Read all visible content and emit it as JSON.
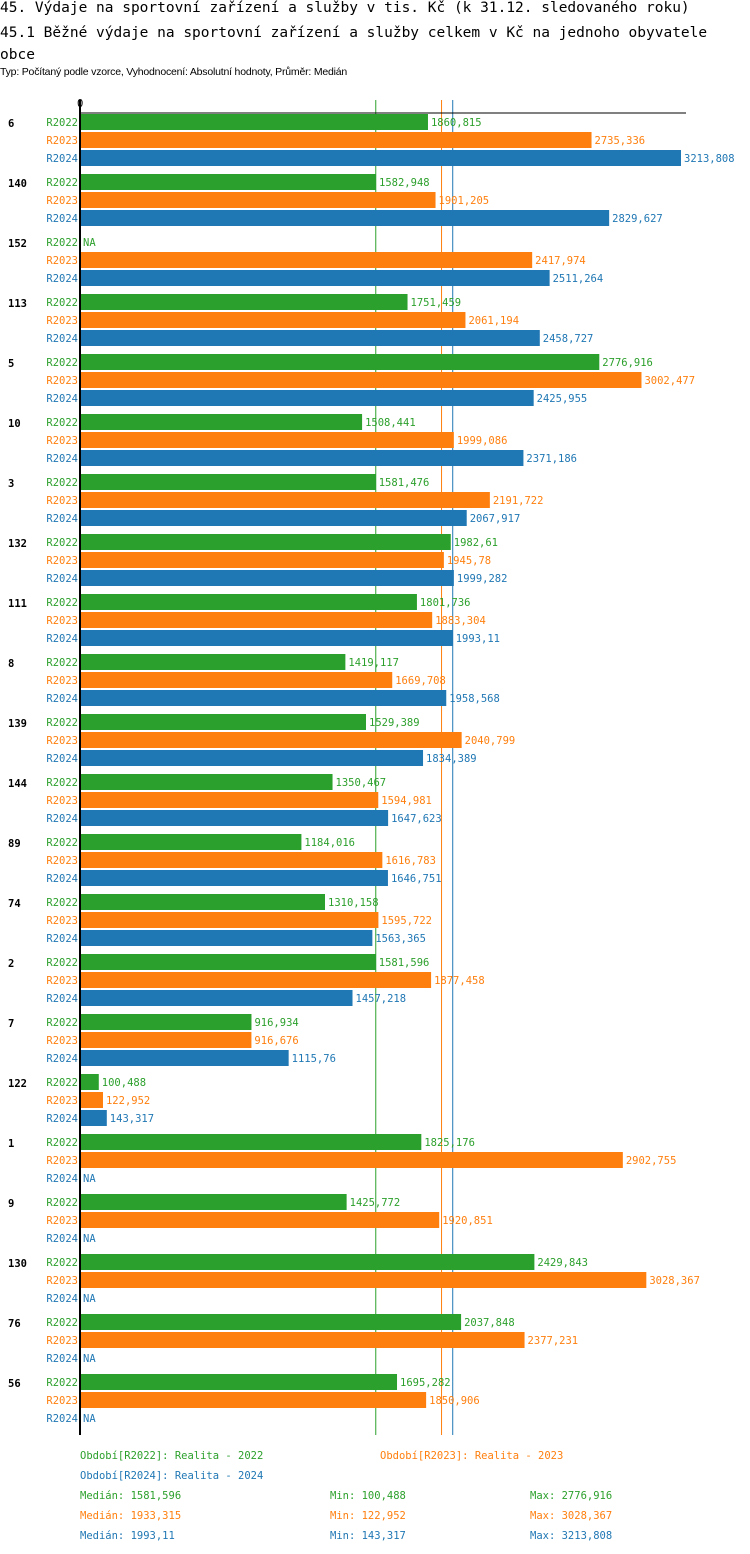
{
  "title": "45. Výdaje na sportovní zařízení a služby v tis. Kč (k 31.12. sledovaného roku)",
  "subtitle": "45.1 Běžné výdaje na sportovní zařízení a služby celkem v Kč na jednoho obyvatele obce",
  "info": "Typ: Počítaný podle vzorce, Vyhodnocení: Absolutní hodnoty, Průměr: Medián",
  "chart_data": {
    "type": "bar",
    "orientation": "horizontal",
    "xlim": [
      0,
      3213.808
    ],
    "x_tick_label": "0",
    "categories": [
      "6",
      "140",
      "152",
      "113",
      "5",
      "10",
      "3",
      "132",
      "111",
      "8",
      "139",
      "144",
      "89",
      "74",
      "2",
      "7",
      "122",
      "1",
      "9",
      "130",
      "76",
      "56"
    ],
    "series": [
      {
        "name": "R2022",
        "color": "#2ca02c",
        "values": [
          1860.815,
          1582.948,
          null,
          1751.459,
          2776.916,
          1508.441,
          1581.476,
          1982.61,
          1801.736,
          1419.117,
          1529.389,
          1350.467,
          1184.016,
          1310.158,
          1581.596,
          916.934,
          100.488,
          1825.176,
          1425.772,
          2429.843,
          2037.848,
          1695.282
        ],
        "labels": [
          "1860,815",
          "1582,948",
          "NA",
          "1751,459",
          "2776,916",
          "1508,441",
          "1581,476",
          "1982,61",
          "1801,736",
          "1419,117",
          "1529,389",
          "1350,467",
          "1184,016",
          "1310,158",
          "1581,596",
          "916,934",
          "100,488",
          "1825,176",
          "1425,772",
          "2429,843",
          "2037,848",
          "1695,282"
        ]
      },
      {
        "name": "R2023",
        "color": "#ff7f0e",
        "values": [
          2735.336,
          1901.205,
          2417.974,
          2061.194,
          3002.477,
          1999.086,
          2191.722,
          1945.78,
          1883.304,
          1669.708,
          2040.799,
          1594.981,
          1616.783,
          1595.722,
          1877.458,
          916.676,
          122.952,
          2902.755,
          1920.851,
          3028.367,
          2377.231,
          1850.906
        ],
        "labels": [
          "2735,336",
          "1901,205",
          "2417,974",
          "2061,194",
          "3002,477",
          "1999,086",
          "2191,722",
          "1945,78",
          "1883,304",
          "1669,708",
          "2040,799",
          "1594,981",
          "1616,783",
          "1595,722",
          "1877,458",
          "916,676",
          "122,952",
          "2902,755",
          "1920,851",
          "3028,367",
          "2377,231",
          "1850,906"
        ]
      },
      {
        "name": "R2024",
        "color": "#1f77b4",
        "values": [
          3213.808,
          2829.627,
          2511.264,
          2458.727,
          2425.955,
          2371.186,
          2067.917,
          1999.282,
          1993.11,
          1958.568,
          1834.389,
          1647.623,
          1646.751,
          1563.365,
          1457.218,
          1115.76,
          143.317,
          null,
          null,
          null,
          null,
          null
        ],
        "labels": [
          "3213,808",
          "2829,627",
          "2511,264",
          "2458,727",
          "2425,955",
          "2371,186",
          "2067,917",
          "1999,282",
          "1993,11",
          "1958,568",
          "1834,389",
          "1647,623",
          "1646,751",
          "1563,365",
          "1457,218",
          "1115,76",
          "143,317",
          "NA",
          "NA",
          "NA",
          "NA",
          "NA"
        ]
      }
    ],
    "medians": [
      1581.596,
      1933.315,
      1993.11
    ],
    "legend": {
      "periods": [
        "Období[R2022]: Realita - 2022",
        "Období[R2023]: Realita - 2023",
        "Období[R2024]: Realita - 2024"
      ],
      "stats": [
        [
          "Medián: 1581,596",
          "Min: 100,488",
          "Max: 2776,916"
        ],
        [
          "Medián: 1933,315",
          "Min: 122,952",
          "Max: 3028,367"
        ],
        [
          "Medián: 1993,11",
          "Min: 143,317",
          "Max: 3213,808"
        ]
      ]
    }
  }
}
